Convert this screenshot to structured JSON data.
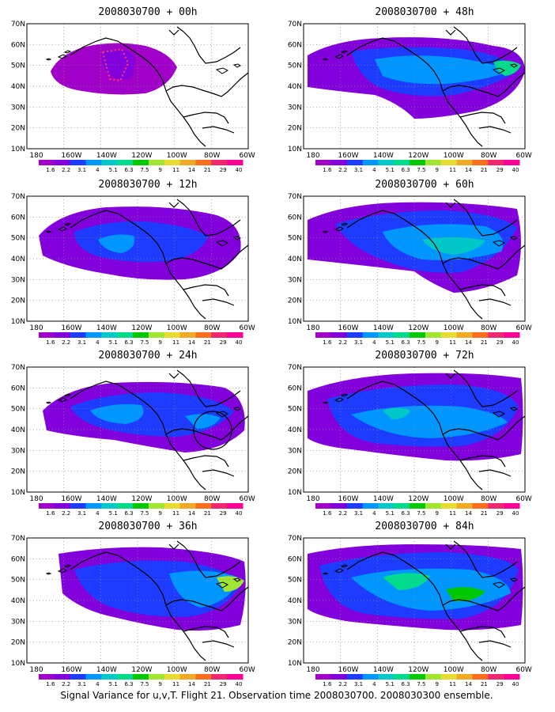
{
  "panels": [
    {
      "id": "p00",
      "title": "2008030700 + 00h"
    },
    {
      "id": "p48",
      "title": "2008030700 + 48h"
    },
    {
      "id": "p12",
      "title": "2008030700 + 12h"
    },
    {
      "id": "p60",
      "title": "2008030700 + 60h"
    },
    {
      "id": "p24",
      "title": "2008030700 + 24h"
    },
    {
      "id": "p72",
      "title": "2008030700 + 72h"
    },
    {
      "id": "p36",
      "title": "2008030700 + 36h"
    },
    {
      "id": "p84",
      "title": "2008030700 + 84h"
    }
  ],
  "lat_labels": [
    "70N",
    "60N",
    "50N",
    "40N",
    "30N",
    "20N",
    "10N"
  ],
  "lon_labels": [
    "180",
    "160W",
    "140W",
    "120W",
    "100W",
    "80W",
    "60W"
  ],
  "colorbar": {
    "labels": [
      "1.6",
      "2.2",
      "3.1",
      "4",
      "5.1",
      "6.3",
      "7.5",
      "9",
      "11",
      "14",
      "21",
      "29",
      "40"
    ],
    "colors": [
      "#a000c8",
      "#8200dc",
      "#1e3cff",
      "#0096ff",
      "#00c8c8",
      "#00dc8c",
      "#00c800",
      "#a0e632",
      "#e6dc32",
      "#f0aa28",
      "#fa6e1e",
      "#f0286e",
      "#ff0096"
    ]
  },
  "footer": "Signal Variance for u,v,T. Flight 21. Observation time 2008030700. 2008030300 ensemble."
}
